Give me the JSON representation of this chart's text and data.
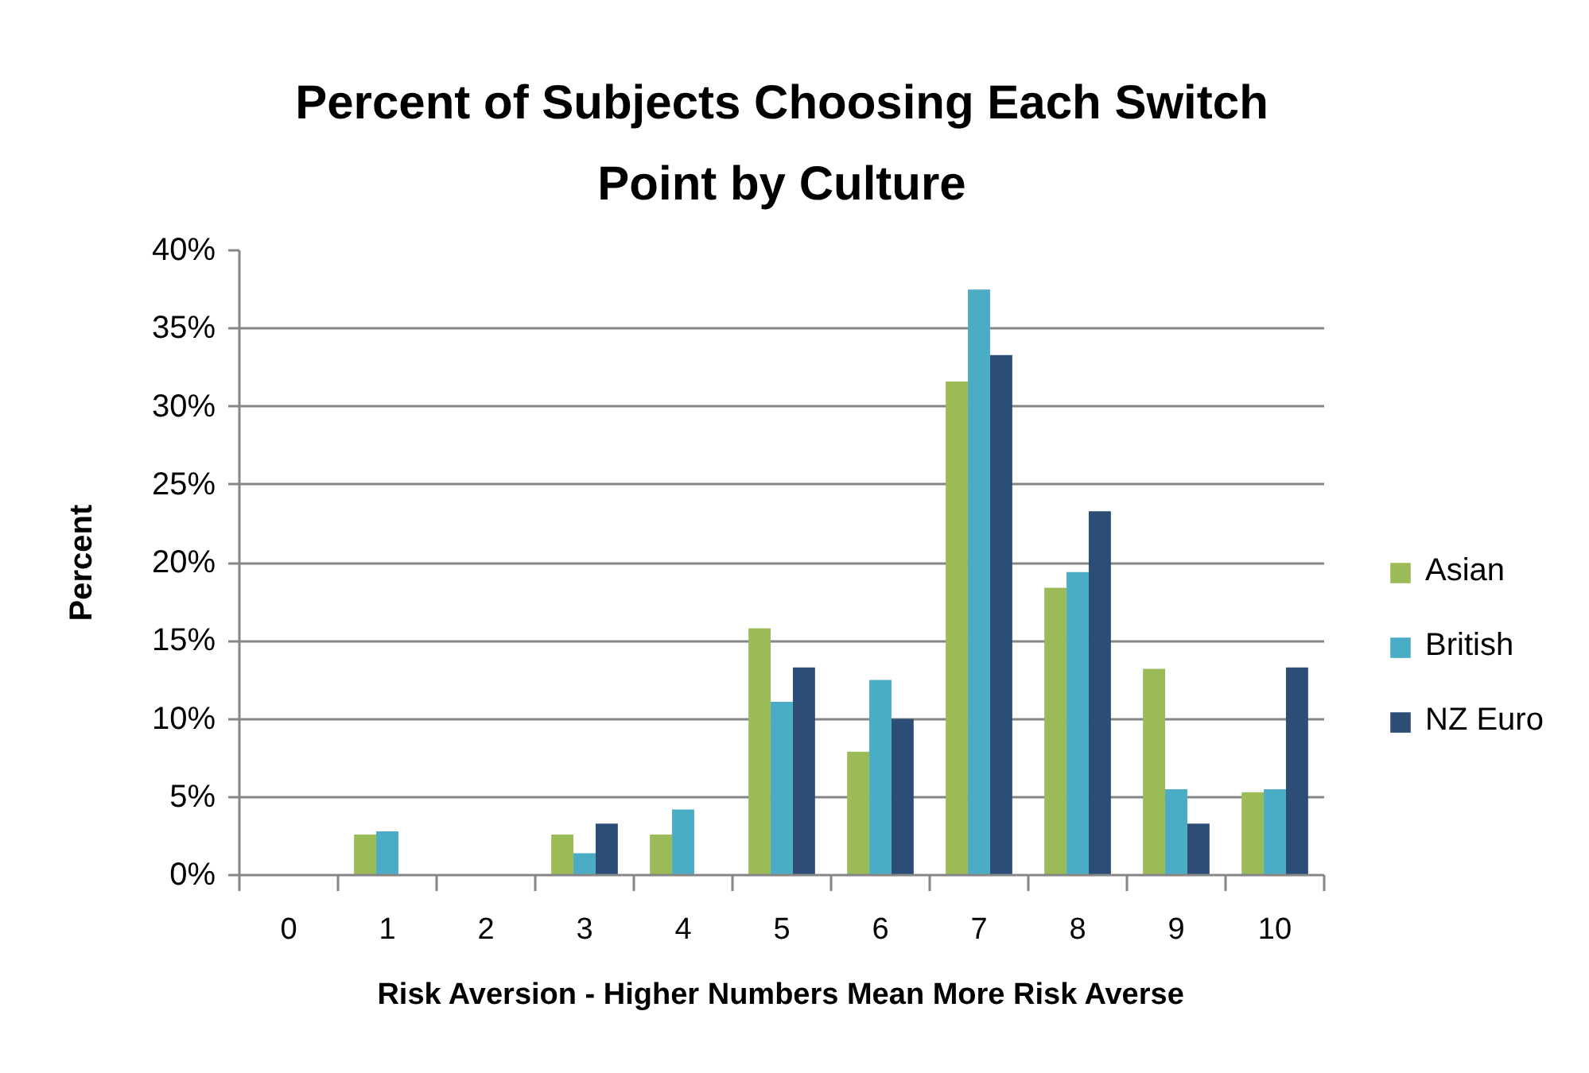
{
  "chart_data": {
    "type": "bar",
    "title": "Percent of Subjects Choosing Each Switch Point by Culture",
    "xlabel": "Risk Aversion - Higher Numbers Mean More Risk Averse",
    "ylabel": "Percent",
    "categories": [
      "0",
      "1",
      "2",
      "3",
      "4",
      "5",
      "6",
      "7",
      "8",
      "9",
      "10"
    ],
    "series": [
      {
        "name": "Asian",
        "color": "#9bbb59",
        "values": [
          0,
          2.6,
          0,
          2.6,
          2.6,
          15.8,
          7.9,
          31.6,
          18.4,
          13.2,
          5.3
        ]
      },
      {
        "name": "British",
        "color": "#4bacc6",
        "values": [
          0,
          2.8,
          0,
          1.4,
          4.2,
          11.1,
          12.5,
          37.5,
          19.4,
          5.5,
          5.5
        ]
      },
      {
        "name": "NZ Euro",
        "color": "#2c4d75",
        "values": [
          0,
          0,
          0,
          3.3,
          0,
          13.3,
          10.0,
          33.3,
          23.3,
          3.3,
          13.3
        ]
      }
    ],
    "ylim": [
      0,
      40
    ],
    "yticks": [
      {
        "value": 0,
        "label": "0%"
      },
      {
        "value": 5,
        "label": "5%"
      },
      {
        "value": 10,
        "label": "10%"
      },
      {
        "value": 15,
        "label": "15%"
      },
      {
        "value": 20,
        "label": "20%"
      },
      {
        "value": 25,
        "label": "25%"
      },
      {
        "value": 30,
        "label": "30%"
      },
      {
        "value": 35,
        "label": "35%"
      },
      {
        "value": 40,
        "label": "40%"
      }
    ],
    "grid": "y",
    "legend": "right"
  }
}
